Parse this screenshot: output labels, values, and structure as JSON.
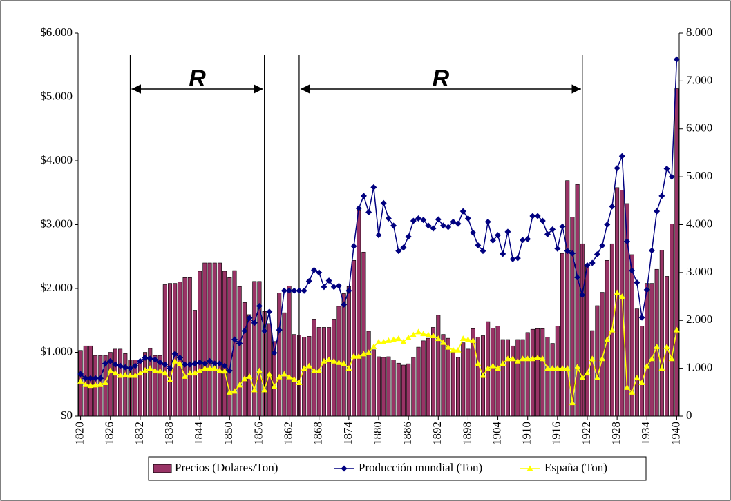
{
  "chart_data": {
    "type": "bar_line",
    "x": [
      1820,
      1821,
      1822,
      1823,
      1824,
      1825,
      1826,
      1827,
      1828,
      1829,
      1830,
      1831,
      1832,
      1833,
      1834,
      1835,
      1836,
      1837,
      1838,
      1839,
      1840,
      1841,
      1842,
      1843,
      1844,
      1845,
      1846,
      1847,
      1848,
      1849,
      1850,
      1851,
      1852,
      1853,
      1854,
      1855,
      1856,
      1857,
      1858,
      1859,
      1860,
      1861,
      1862,
      1863,
      1864,
      1865,
      1866,
      1867,
      1868,
      1869,
      1870,
      1871,
      1872,
      1873,
      1874,
      1875,
      1876,
      1877,
      1878,
      1879,
      1880,
      1881,
      1882,
      1883,
      1884,
      1885,
      1886,
      1887,
      1888,
      1889,
      1890,
      1891,
      1892,
      1893,
      1894,
      1895,
      1896,
      1897,
      1898,
      1899,
      1900,
      1901,
      1902,
      1903,
      1904,
      1905,
      1906,
      1907,
      1908,
      1909,
      1910,
      1911,
      1912,
      1913,
      1914,
      1915,
      1916,
      1917,
      1918,
      1919,
      1920,
      1921,
      1922,
      1923,
      1924,
      1925,
      1926,
      1927,
      1928,
      1929,
      1930,
      1931,
      1932,
      1933,
      1934,
      1935,
      1936,
      1937,
      1938,
      1939,
      1940
    ],
    "xlim": [
      1819.5,
      1940.5
    ],
    "xticks": [
      1820,
      1826,
      1832,
      1838,
      1844,
      1850,
      1856,
      1862,
      1868,
      1874,
      1880,
      1886,
      1892,
      1898,
      1904,
      1910,
      1916,
      1922,
      1928,
      1934,
      1940
    ],
    "ylim": [
      0,
      6000
    ],
    "yticks": [
      {
        "value": 0,
        "label": "$0"
      },
      {
        "value": 1000,
        "label": "$1.000"
      },
      {
        "value": 2000,
        "label": "$2.000"
      },
      {
        "value": 3000,
        "label": "$3.000"
      },
      {
        "value": 4000,
        "label": "$4.000"
      },
      {
        "value": 5000,
        "label": "$5.000"
      },
      {
        "value": 6000,
        "label": "$6.000"
      }
    ],
    "y2lim": [
      0,
      8000
    ],
    "y2ticks": [
      0,
      {
        "value": 1000,
        "label": "1.000"
      },
      {
        "value": 2000,
        "label": "2.000"
      },
      {
        "value": 3000,
        "label": "3.000"
      },
      {
        "value": 4000,
        "label": "4.000"
      },
      {
        "value": 5000,
        "label": "5.000"
      },
      {
        "value": 6000,
        "label": "6.000"
      },
      {
        "value": 7000,
        "label": "7.000"
      },
      {
        "value": 8000,
        "label": "8.000"
      }
    ],
    "periods": [
      {
        "label": "R",
        "start": 1830,
        "end": 1857
      },
      {
        "label": "R",
        "start": 1864,
        "end": 1921
      }
    ],
    "series": [
      {
        "name": "Precios (Dolares/Ton)",
        "type": "bar",
        "color": "#993366",
        "values": [
          1030,
          1100,
          1100,
          950,
          950,
          950,
          1000,
          1050,
          1050,
          980,
          880,
          880,
          880,
          1000,
          1060,
          950,
          950,
          2060,
          2080,
          2080,
          2100,
          2170,
          2170,
          1660,
          2270,
          2400,
          2400,
          2400,
          2400,
          2270,
          2170,
          2280,
          2030,
          1780,
          1590,
          2110,
          2110,
          1640,
          1450,
          1170,
          1930,
          1620,
          2040,
          1280,
          1270,
          1240,
          1250,
          1520,
          1390,
          1390,
          1390,
          1520,
          1720,
          1920,
          2030,
          2440,
          3220,
          2570,
          1330,
          1040,
          930,
          920,
          930,
          880,
          830,
          800,
          820,
          920,
          1080,
          1180,
          1220,
          1390,
          1580,
          1280,
          1220,
          1000,
          920,
          1150,
          1050,
          1370,
          1240,
          1260,
          1480,
          1380,
          1410,
          1200,
          1200,
          1100,
          1200,
          1200,
          1310,
          1360,
          1370,
          1370,
          1240,
          1140,
          1410,
          2550,
          3690,
          3120,
          3630,
          2700,
          2380,
          1340,
          1730,
          1940,
          2440,
          2700,
          3580,
          3540,
          3330,
          2530,
          1680,
          1410,
          2080,
          2080,
          2300,
          2600,
          2190,
          3010,
          5130
        ]
      },
      {
        "name": "Producción mundial (Ton)",
        "type": "line",
        "axis": "y2",
        "marker": "diamond",
        "color": "#000080",
        "values": [
          880,
          790,
          790,
          790,
          790,
          1100,
          1150,
          1080,
          1050,
          1020,
          1000,
          1050,
          1150,
          1220,
          1200,
          1180,
          1120,
          1080,
          1000,
          1300,
          1220,
          1080,
          1080,
          1100,
          1120,
          1100,
          1150,
          1100,
          1100,
          1050,
          950,
          1600,
          1520,
          1780,
          2050,
          1950,
          2300,
          1780,
          2180,
          1320,
          1800,
          2620,
          2620,
          2620,
          2620,
          2620,
          2820,
          3050,
          3000,
          2700,
          2830,
          2700,
          2720,
          2330,
          2620,
          3550,
          4340,
          4600,
          4260,
          4780,
          3780,
          4450,
          4130,
          3980,
          3450,
          3520,
          3750,
          4080,
          4130,
          4100,
          3980,
          3920,
          4110,
          3980,
          3950,
          4060,
          4020,
          4280,
          4130,
          3830,
          3570,
          3450,
          4060,
          3670,
          3780,
          3390,
          3850,
          3280,
          3300,
          3680,
          3700,
          4180,
          4180,
          4080,
          3800,
          3900,
          3500,
          3960,
          3450,
          3400,
          2900,
          2530,
          3150,
          3200,
          3380,
          3560,
          4000,
          4380,
          5180,
          5430,
          3650,
          3040,
          2790,
          2060,
          2640,
          3460,
          4280,
          4600,
          5170,
          5000,
          7450
        ]
      },
      {
        "name": "España (Ton)",
        "type": "line",
        "axis": "y2",
        "marker": "triangle",
        "color": "#ffff00",
        "values": [
          730,
          660,
          640,
          650,
          660,
          700,
          950,
          900,
          850,
          860,
          850,
          850,
          900,
          960,
          1000,
          950,
          940,
          900,
          760,
          1150,
          1100,
          830,
          900,
          900,
          950,
          1000,
          1000,
          1000,
          950,
          940,
          500,
          520,
          650,
          780,
          830,
          550,
          950,
          550,
          880,
          620,
          820,
          880,
          820,
          770,
          700,
          1000,
          1050,
          950,
          950,
          1150,
          1180,
          1150,
          1120,
          1100,
          1000,
          1250,
          1250,
          1300,
          1330,
          1450,
          1550,
          1550,
          1580,
          1600,
          1620,
          1550,
          1640,
          1700,
          1760,
          1720,
          1700,
          1680,
          1620,
          1540,
          1440,
          1380,
          1380,
          1620,
          1600,
          1580,
          1100,
          850,
          1000,
          1050,
          1000,
          1100,
          1200,
          1200,
          1150,
          1200,
          1200,
          1200,
          1220,
          1200,
          1000,
          1000,
          1000,
          1000,
          1000,
          280,
          1030,
          800,
          900,
          1200,
          800,
          1200,
          1600,
          1800,
          2580,
          2500,
          600,
          500,
          800,
          700,
          1050,
          1200,
          1450,
          1000,
          1450,
          1200,
          1800
        ]
      }
    ]
  }
}
